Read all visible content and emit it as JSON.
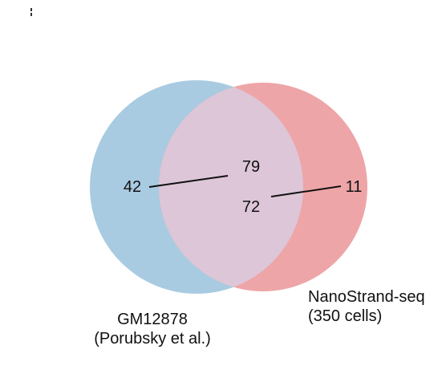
{
  "diagram": {
    "type": "venn",
    "sets": [
      {
        "id": "a",
        "label_line1": "GM12878",
        "label_line2": "(Porubsky et al.)",
        "color": "#A9CBE1"
      },
      {
        "id": "b",
        "label_line1": "NanoStrand-seq",
        "label_line2": "(350 cells)",
        "color": "#EEA5A8"
      }
    ],
    "overlap_color": "#DCC6D8",
    "counts": {
      "only_a": "42",
      "overlap_top": "79",
      "overlap_bottom": "72",
      "only_b": "11"
    }
  }
}
